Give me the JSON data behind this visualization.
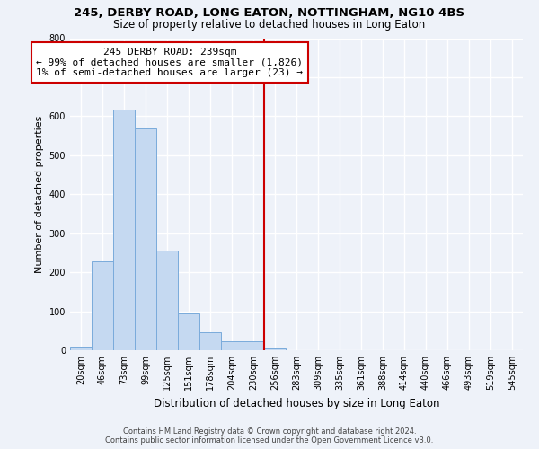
{
  "title": "245, DERBY ROAD, LONG EATON, NOTTINGHAM, NG10 4BS",
  "subtitle": "Size of property relative to detached houses in Long Eaton",
  "xlabel": "Distribution of detached houses by size in Long Eaton",
  "ylabel": "Number of detached properties",
  "bin_labels": [
    "20sqm",
    "46sqm",
    "73sqm",
    "99sqm",
    "125sqm",
    "151sqm",
    "178sqm",
    "204sqm",
    "230sqm",
    "256sqm",
    "283sqm",
    "309sqm",
    "335sqm",
    "361sqm",
    "388sqm",
    "414sqm",
    "440sqm",
    "466sqm",
    "493sqm",
    "519sqm",
    "545sqm"
  ],
  "bar_heights": [
    10,
    229,
    616,
    568,
    255,
    95,
    45,
    22,
    22,
    5,
    0,
    0,
    0,
    0,
    0,
    0,
    0,
    0,
    0,
    0,
    0
  ],
  "bar_color": "#c5d9f1",
  "bar_edge_color": "#7aabdb",
  "property_line_x": 8.5,
  "property_line_color": "#cc0000",
  "annotation_title": "245 DERBY ROAD: 239sqm",
  "annotation_line1": "← 99% of detached houses are smaller (1,826)",
  "annotation_line2": "1% of semi-detached houses are larger (23) →",
  "annotation_box_color": "#ffffff",
  "annotation_box_edge": "#cc0000",
  "ylim": [
    0,
    800
  ],
  "yticks": [
    0,
    100,
    200,
    300,
    400,
    500,
    600,
    700,
    800
  ],
  "footer1": "Contains HM Land Registry data © Crown copyright and database right 2024.",
  "footer2": "Contains public sector information licensed under the Open Government Licence v3.0.",
  "background_color": "#eef2f9",
  "grid_color": "#ffffff",
  "title_fontsize": 9.5,
  "subtitle_fontsize": 8.5,
  "ylabel_fontsize": 8,
  "xlabel_fontsize": 8.5,
  "tick_fontsize": 7,
  "footer_fontsize": 6,
  "annotation_fontsize": 8
}
